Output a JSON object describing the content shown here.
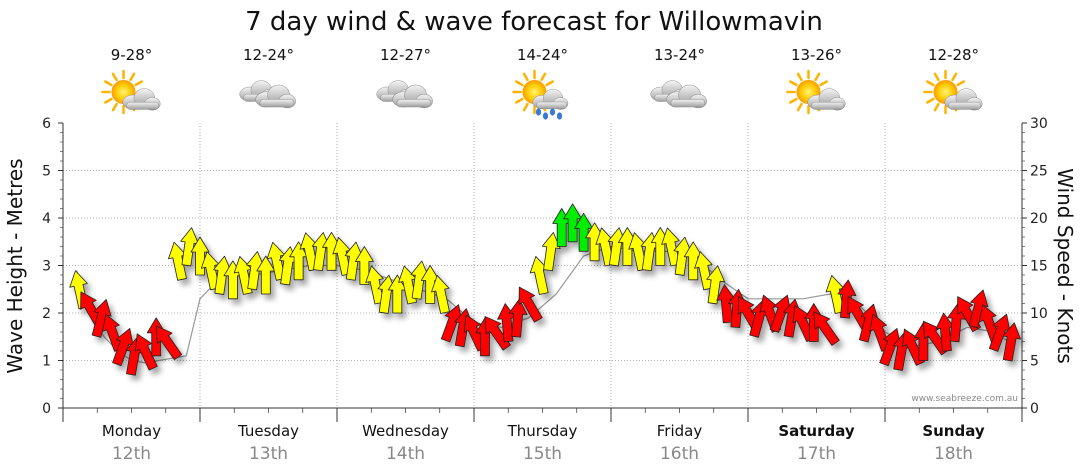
{
  "title": "7 day wind & wave forecast for Willowmavin",
  "watermark": "www.seabreeze.com.au",
  "axis": {
    "left_title": "Wave Height - Metres",
    "right_title": "Wind Speed - Knots",
    "left_ticks": [
      "0",
      "1",
      "2",
      "3",
      "4",
      "5",
      "6"
    ],
    "right_ticks": [
      "0",
      "5",
      "10",
      "15",
      "20",
      "25",
      "30"
    ]
  },
  "days": [
    {
      "name": "Monday",
      "date": "12th",
      "temp": "9-28°",
      "icon": "partly-cloudy-icon",
      "bold": false
    },
    {
      "name": "Tuesday",
      "date": "13th",
      "temp": "12-24°",
      "icon": "cloudy-icon",
      "bold": false
    },
    {
      "name": "Wednesday",
      "date": "14th",
      "temp": "12-27°",
      "icon": "cloudy-icon",
      "bold": false
    },
    {
      "name": "Thursday",
      "date": "15th",
      "temp": "14-24°",
      "icon": "sun-rain-icon",
      "bold": false
    },
    {
      "name": "Friday",
      "date": "16th",
      "temp": "13-24°",
      "icon": "cloudy-icon",
      "bold": false
    },
    {
      "name": "Saturday",
      "date": "17th",
      "temp": "13-26°",
      "icon": "partly-cloudy-icon",
      "bold": true
    },
    {
      "name": "Sunday",
      "date": "18th",
      "temp": "12-28°",
      "icon": "partly-cloudy-icon",
      "bold": true
    }
  ],
  "colors": {
    "strong": "#ff0000",
    "moderate": "#ffff00",
    "fresh": "#00ee00",
    "grid": "#9a9a9a",
    "wave_line": "#999999"
  },
  "chart_data": {
    "type": "line",
    "title": "7 day wind & wave forecast for Willowmavin",
    "ylabel_left": "Wave Height - Metres",
    "ylabel_right": "Wind Speed - Knots",
    "ylim_left": [
      0,
      6
    ],
    "ylim_right": [
      0,
      30
    ],
    "grid": true,
    "categories": [
      "Monday 12th",
      "Tuesday 13th",
      "Wednesday 14th",
      "Thursday 15th",
      "Friday 16th",
      "Saturday 17th",
      "Sunday 18th"
    ],
    "series": [
      {
        "name": "Wind Speed - Knots",
        "x": [
          0.12,
          0.2,
          0.28,
          0.36,
          0.44,
          0.52,
          0.6,
          0.68,
          0.76,
          0.84,
          0.92,
          1.0,
          1.08,
          1.16,
          1.24,
          1.32,
          1.4,
          1.48,
          1.56,
          1.64,
          1.72,
          1.8,
          1.88,
          1.96,
          2.04,
          2.12,
          2.2,
          2.28,
          2.36,
          2.44,
          2.52,
          2.6,
          2.68,
          2.76,
          2.84,
          2.92,
          3.0,
          3.08,
          3.16,
          3.24,
          3.32,
          3.4,
          3.48,
          3.56,
          3.64,
          3.72,
          3.8,
          3.88,
          3.96,
          4.04,
          4.12,
          4.2,
          4.28,
          4.36,
          4.44,
          4.52,
          4.6,
          4.68,
          4.76,
          4.84,
          4.92,
          5.0,
          5.08,
          5.16,
          5.24,
          5.32,
          5.4,
          5.48,
          5.56,
          5.64,
          5.72,
          5.8,
          5.88,
          5.96,
          6.04,
          6.12,
          6.2,
          6.28,
          6.36,
          6.44,
          6.52,
          6.6,
          6.68,
          6.76,
          6.84,
          6.92
        ],
        "values": [
          12.5,
          10.5,
          9.5,
          8,
          6.5,
          5.5,
          6,
          7.5,
          7,
          15.5,
          17,
          16,
          14.5,
          14,
          13.5,
          14,
          14.5,
          14,
          15.5,
          15,
          15.5,
          16.5,
          16.5,
          16.5,
          16,
          15.5,
          15,
          13,
          12,
          12,
          13,
          13.5,
          13,
          12,
          9,
          8.5,
          8,
          7.5,
          8,
          9,
          9.5,
          11,
          14,
          16.5,
          19,
          19.5,
          18.5,
          17.5,
          17,
          17,
          17,
          16.5,
          16.5,
          17,
          17,
          16,
          15.5,
          14.5,
          13,
          11,
          10.5,
          10,
          9.5,
          10,
          10,
          9.5,
          9,
          9,
          8.5,
          12,
          11.5,
          10,
          9,
          8,
          6.5,
          6,
          6.5,
          7,
          7.5,
          8,
          9,
          10,
          10.5,
          9,
          8,
          7
        ]
      },
      {
        "name": "Wave Height - Metres",
        "x": [
          0.1,
          0.2,
          0.3,
          0.4,
          0.5,
          0.6,
          0.7,
          0.8,
          0.9,
          1.0,
          1.2,
          1.4,
          1.6,
          1.8,
          2.0,
          2.2,
          2.4,
          2.6,
          2.8,
          3.0,
          3.2,
          3.4,
          3.6,
          3.8,
          4.0,
          4.2,
          4.4,
          4.6,
          4.8,
          5.0,
          5.2,
          5.4,
          5.6,
          5.8,
          6.0,
          6.2,
          6.4,
          6.6,
          6.8,
          6.95
        ],
        "values": [
          2.9,
          2.0,
          1.5,
          1.2,
          1.0,
          0.95,
          1.0,
          1.05,
          1.1,
          2.3,
          2.9,
          2.8,
          2.9,
          3.0,
          3.0,
          2.9,
          2.7,
          2.5,
          2.3,
          1.8,
          1.7,
          1.9,
          2.4,
          3.2,
          3.4,
          3.3,
          3.3,
          3.2,
          2.7,
          2.3,
          2.3,
          2.3,
          2.4,
          2.2,
          1.6,
          1.3,
          1.4,
          1.7,
          1.6,
          1.3
        ]
      }
    ]
  }
}
